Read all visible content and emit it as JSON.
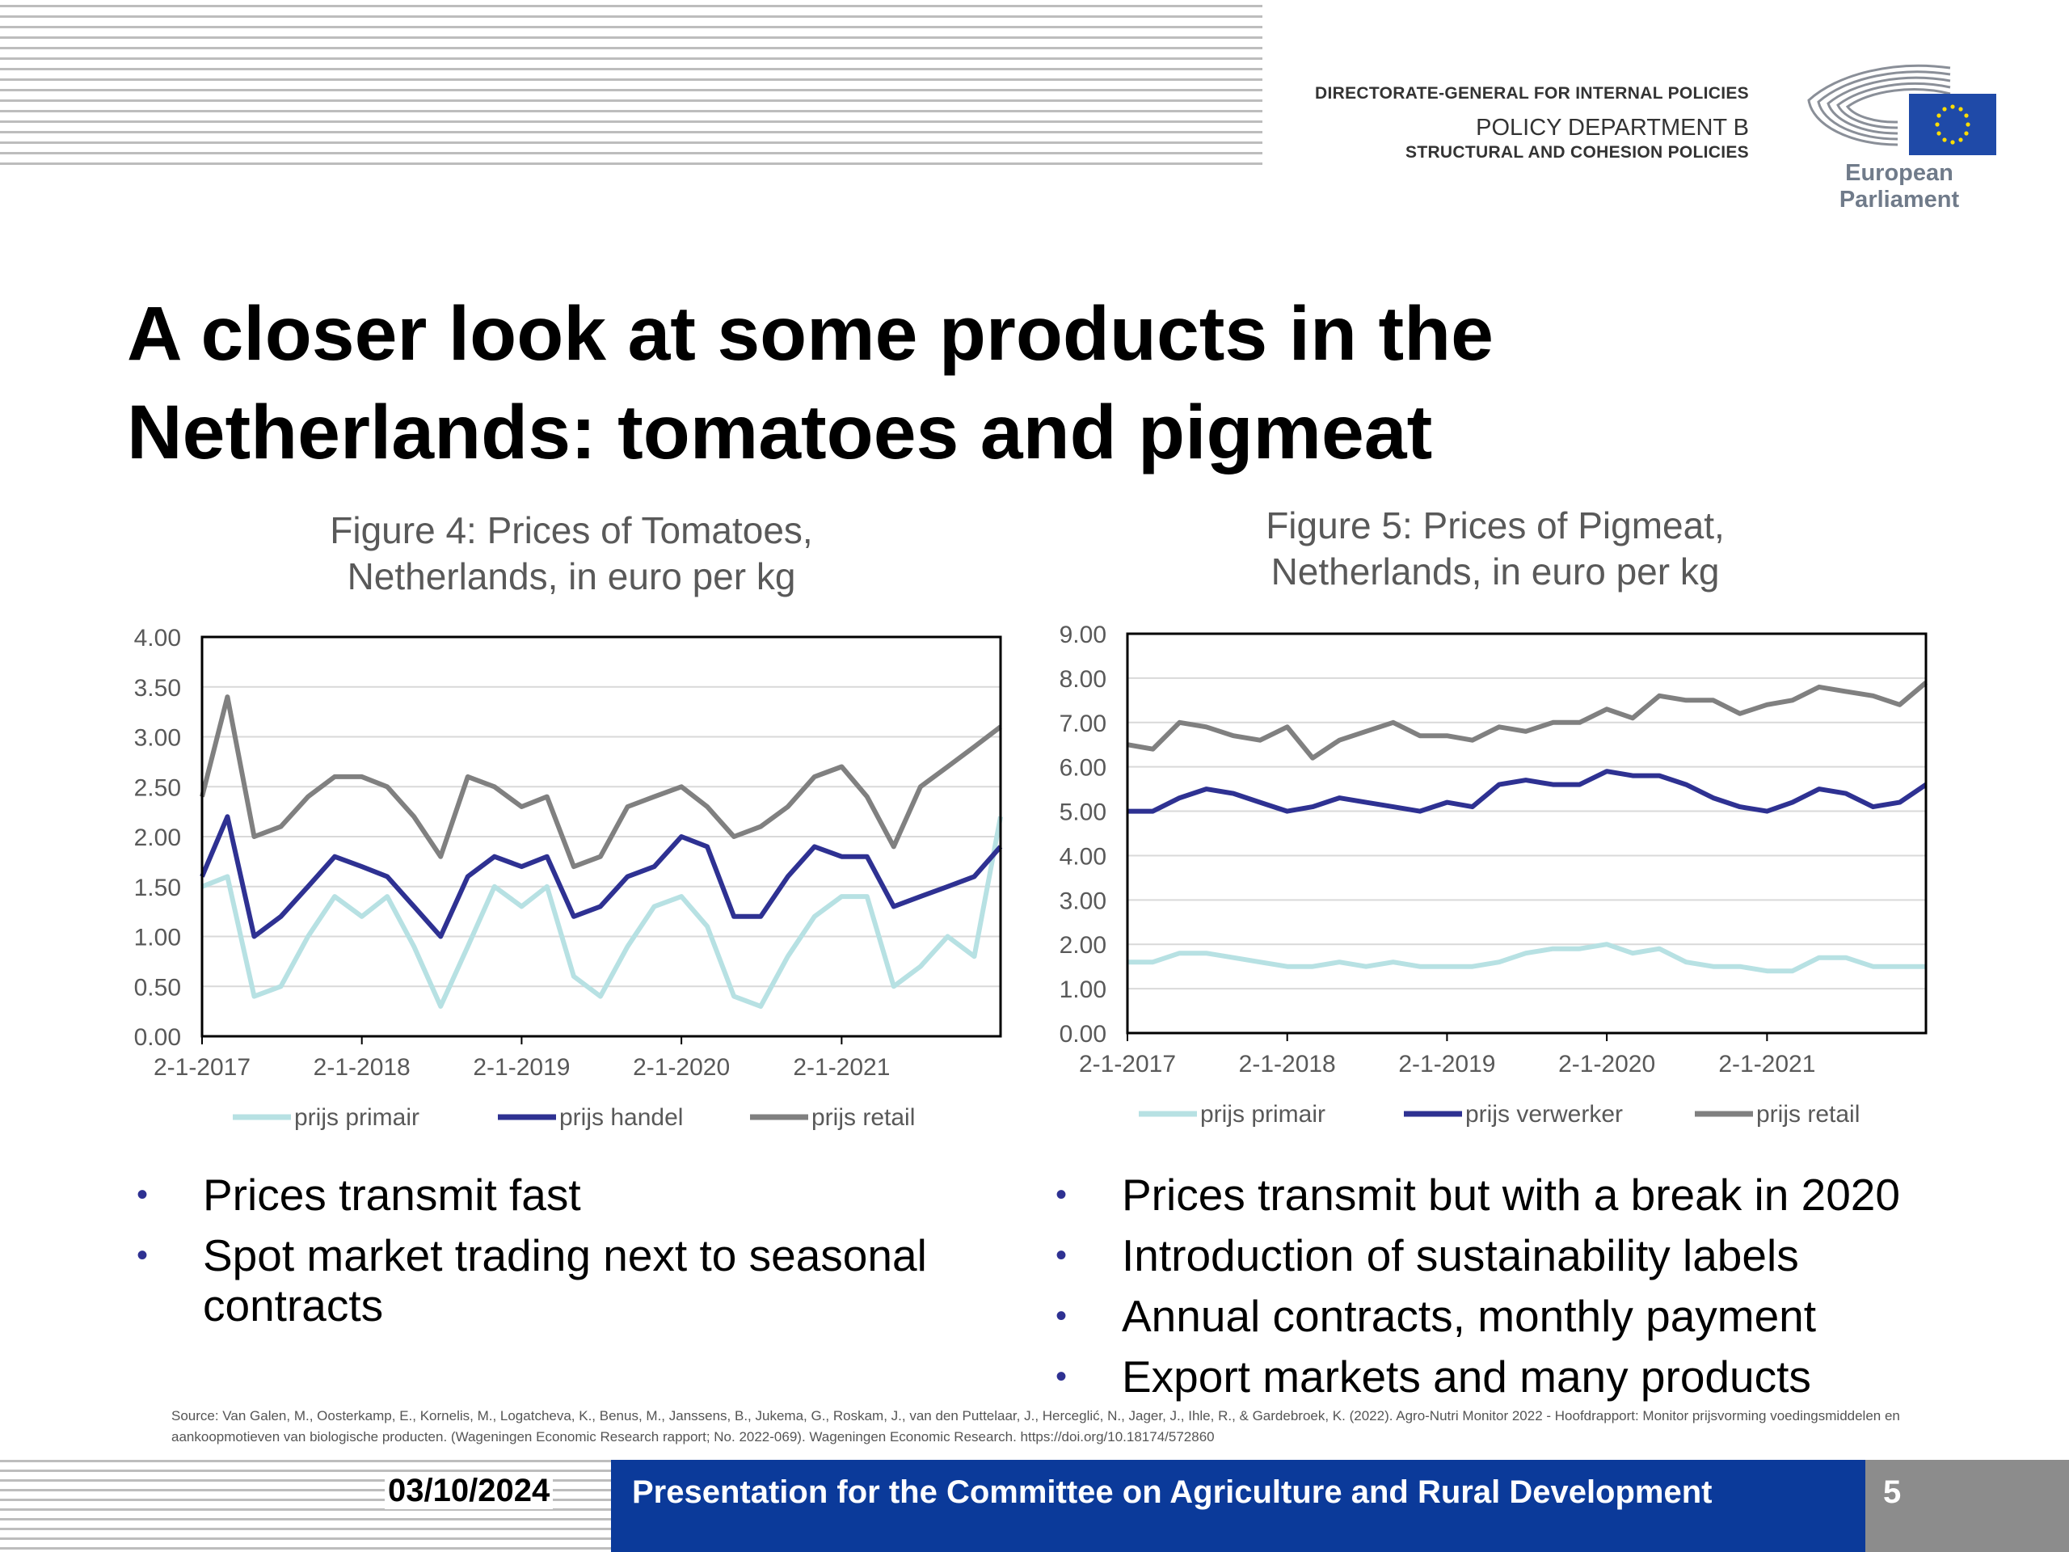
{
  "header": {
    "dg": "DIRECTORATE-GENERAL FOR INTERNAL POLICIES",
    "department": "POLICY DEPARTMENT B",
    "subtitle": "STRUCTURAL AND COHESION POLICIES",
    "logo_text": "European Parliament"
  },
  "slide": {
    "title_line1": "A closer look at some products in the",
    "title_line2": "Netherlands: tomatoes and pigmeat"
  },
  "colors": {
    "primair": "#b7e1e3",
    "middle": "#2e3192",
    "retail": "#808080",
    "footer_blue": "#0b3a9a"
  },
  "chart_data": [
    {
      "type": "line",
      "title_line1": "Figure 4: Prices of Tomatoes,",
      "title_line2": "Netherlands, in euro per kg",
      "x": [
        "2-1-2017",
        "1-3-2017",
        "1-5-2017",
        "1-7-2017",
        "1-9-2017",
        "1-11-2017",
        "2-1-2018",
        "1-3-2018",
        "1-5-2018",
        "1-7-2018",
        "1-9-2018",
        "1-11-2018",
        "2-1-2019",
        "1-3-2019",
        "1-5-2019",
        "1-7-2019",
        "1-9-2019",
        "1-11-2019",
        "2-1-2020",
        "1-3-2020",
        "1-5-2020",
        "1-7-2020",
        "1-9-2020",
        "1-11-2020",
        "2-1-2021",
        "1-3-2021",
        "1-5-2021",
        "1-7-2021",
        "1-9-2021",
        "1-11-2021",
        "31-12-2021"
      ],
      "x_ticks": [
        "2-1-2017",
        "2-1-2018",
        "2-1-2019",
        "2-1-2020",
        "2-1-2021"
      ],
      "y_ticks": [
        "0.00",
        "0.50",
        "1.00",
        "1.50",
        "2.00",
        "2.50",
        "3.00",
        "3.50",
        "4.00"
      ],
      "ylim": [
        0,
        4
      ],
      "series": [
        {
          "name": "prijs primair",
          "color_key": "primair",
          "values": [
            1.5,
            1.6,
            0.4,
            0.5,
            1.0,
            1.4,
            1.2,
            1.4,
            0.9,
            0.3,
            0.9,
            1.5,
            1.3,
            1.5,
            0.6,
            0.4,
            0.9,
            1.3,
            1.4,
            1.1,
            0.4,
            0.3,
            0.8,
            1.2,
            1.4,
            1.4,
            0.5,
            0.7,
            1.0,
            0.8,
            2.2
          ]
        },
        {
          "name": "prijs handel",
          "color_key": "middle",
          "values": [
            1.6,
            2.2,
            1.0,
            1.2,
            1.5,
            1.8,
            1.7,
            1.6,
            1.3,
            1.0,
            1.6,
            1.8,
            1.7,
            1.8,
            1.2,
            1.3,
            1.6,
            1.7,
            2.0,
            1.9,
            1.2,
            1.2,
            1.6,
            1.9,
            1.8,
            1.8,
            1.3,
            1.4,
            1.5,
            1.6,
            1.9
          ]
        },
        {
          "name": "prijs retail",
          "color_key": "retail",
          "values": [
            2.4,
            3.4,
            2.0,
            2.1,
            2.4,
            2.6,
            2.6,
            2.5,
            2.2,
            1.8,
            2.6,
            2.5,
            2.3,
            2.4,
            1.7,
            1.8,
            2.3,
            2.4,
            2.5,
            2.3,
            2.0,
            2.1,
            2.3,
            2.6,
            2.7,
            2.4,
            1.9,
            2.5,
            2.7,
            2.9,
            3.1
          ]
        }
      ]
    },
    {
      "type": "line",
      "title_line1": "Figure 5: Prices of Pigmeat,",
      "title_line2": "Netherlands, in euro per kg",
      "x": [
        "2-1-2017",
        "1-3-2017",
        "1-5-2017",
        "1-7-2017",
        "1-9-2017",
        "1-11-2017",
        "2-1-2018",
        "1-3-2018",
        "1-5-2018",
        "1-7-2018",
        "1-9-2018",
        "1-11-2018",
        "2-1-2019",
        "1-3-2019",
        "1-5-2019",
        "1-7-2019",
        "1-9-2019",
        "1-11-2019",
        "2-1-2020",
        "1-3-2020",
        "1-5-2020",
        "1-7-2020",
        "1-9-2020",
        "1-11-2020",
        "2-1-2021",
        "1-3-2021",
        "1-5-2021",
        "1-7-2021",
        "1-9-2021",
        "1-11-2021",
        "31-12-2021"
      ],
      "x_ticks": [
        "2-1-2017",
        "2-1-2018",
        "2-1-2019",
        "2-1-2020",
        "2-1-2021"
      ],
      "y_ticks": [
        "0.00",
        "1.00",
        "2.00",
        "3.00",
        "4.00",
        "5.00",
        "6.00",
        "7.00",
        "8.00",
        "9.00"
      ],
      "ylim": [
        0,
        9
      ],
      "series": [
        {
          "name": "prijs primair",
          "color_key": "primair",
          "values": [
            1.6,
            1.6,
            1.8,
            1.8,
            1.7,
            1.6,
            1.5,
            1.5,
            1.6,
            1.5,
            1.6,
            1.5,
            1.5,
            1.5,
            1.6,
            1.8,
            1.9,
            1.9,
            2.0,
            1.8,
            1.9,
            1.6,
            1.5,
            1.5,
            1.4,
            1.4,
            1.7,
            1.7,
            1.5,
            1.5,
            1.5
          ]
        },
        {
          "name": "prijs verwerker",
          "color_key": "middle",
          "values": [
            5.0,
            5.0,
            5.3,
            5.5,
            5.4,
            5.2,
            5.0,
            5.1,
            5.3,
            5.2,
            5.1,
            5.0,
            5.2,
            5.1,
            5.6,
            5.7,
            5.6,
            5.6,
            5.9,
            5.8,
            5.8,
            5.6,
            5.3,
            5.1,
            5.0,
            5.2,
            5.5,
            5.4,
            5.1,
            5.2,
            5.6
          ]
        },
        {
          "name": "prijs retail",
          "color_key": "retail",
          "values": [
            6.5,
            6.4,
            7.0,
            6.9,
            6.7,
            6.6,
            6.9,
            6.2,
            6.6,
            6.8,
            7.0,
            6.7,
            6.7,
            6.6,
            6.9,
            6.8,
            7.0,
            7.0,
            7.3,
            7.1,
            7.6,
            7.5,
            7.5,
            7.2,
            7.4,
            7.5,
            7.8,
            7.7,
            7.6,
            7.4,
            7.9
          ]
        }
      ]
    }
  ],
  "bullets_left": [
    "Prices transmit fast",
    "Spot market trading next to seasonal contracts"
  ],
  "bullets_right": [
    "Prices transmit but with a break in 2020",
    "Introduction of sustainability labels",
    "Annual contracts, monthly payment",
    "Export markets and many products"
  ],
  "source": "Source: Van Galen, M., Oosterkamp, E., Kornelis, M., Logatcheva, K., Benus, M., Janssens, B., Jukema, G., Roskam, J., van den Puttelaar, J., Herceglić, N., Jager, J., Ihle, R., & Gardebroek, K. (2022). Agro-Nutri Monitor 2022 - Hoofdrapport: Monitor prijsvorming voedingsmiddelen en aankoopmotieven van biologische producten. (Wageningen Economic Research rapport; No. 2022-069). Wageningen Economic Research. https://doi.org/10.18174/572860",
  "footer": {
    "date": "03/10/2024",
    "title": "Presentation for the Committee on Agriculture and Rural Development",
    "page": "5"
  }
}
